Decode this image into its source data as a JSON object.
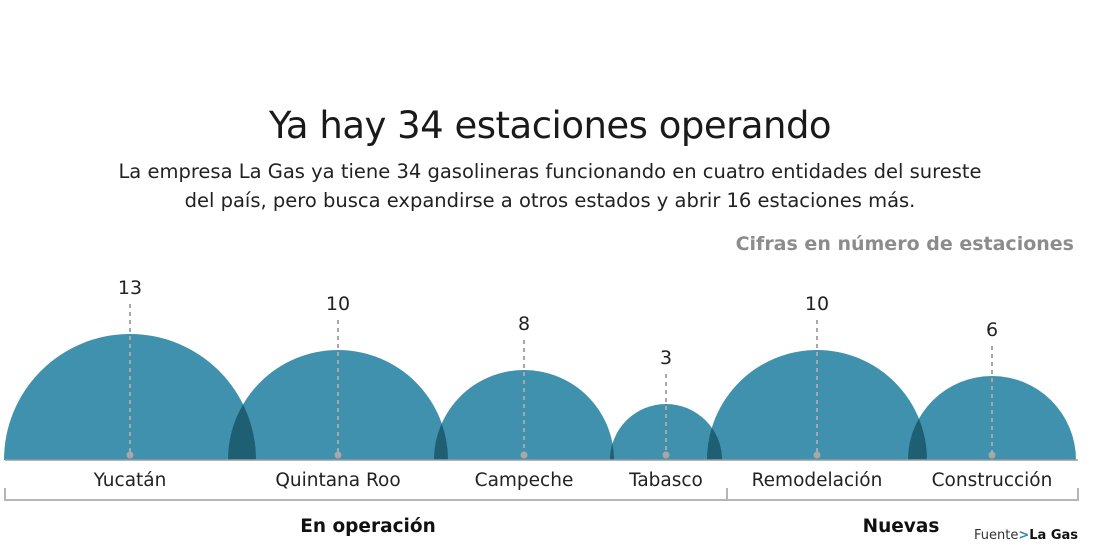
{
  "title": "Ya hay 34 estaciones operando",
  "subtitle_lines": [
    "La empresa La Gas ya tiene 34 gasolineras funcionando en cuatro entidades del sureste",
    "del país, pero busca expandirse a otros estados y abrir 16 estaciones más."
  ],
  "unit_note": "Cifras en número de estaciones",
  "source_label": "Fuente",
  "source_arrow": ">",
  "source_name": "La Gas",
  "colors": {
    "dome": "#3f91ad",
    "overlap": "#1f5f73",
    "dashed": "#a8a8a8",
    "bracket": "#b5b5b5"
  },
  "chart_data": {
    "type": "bar",
    "categories": [
      "Yucatán",
      "Quintana Roo",
      "Campeche",
      "Tabasco",
      "Remodelación",
      "Construcción"
    ],
    "values": [
      13,
      10,
      8,
      3,
      10,
      6
    ],
    "groups": [
      {
        "name": "En operación",
        "categories": [
          "Yucatán",
          "Quintana Roo",
          "Campeche",
          "Tabasco"
        ]
      },
      {
        "name": "Nuevas",
        "categories": [
          "Remodelación",
          "Construcción"
        ]
      }
    ],
    "title": "Ya hay 34 estaciones operando",
    "xlabel": "",
    "ylabel": ""
  }
}
